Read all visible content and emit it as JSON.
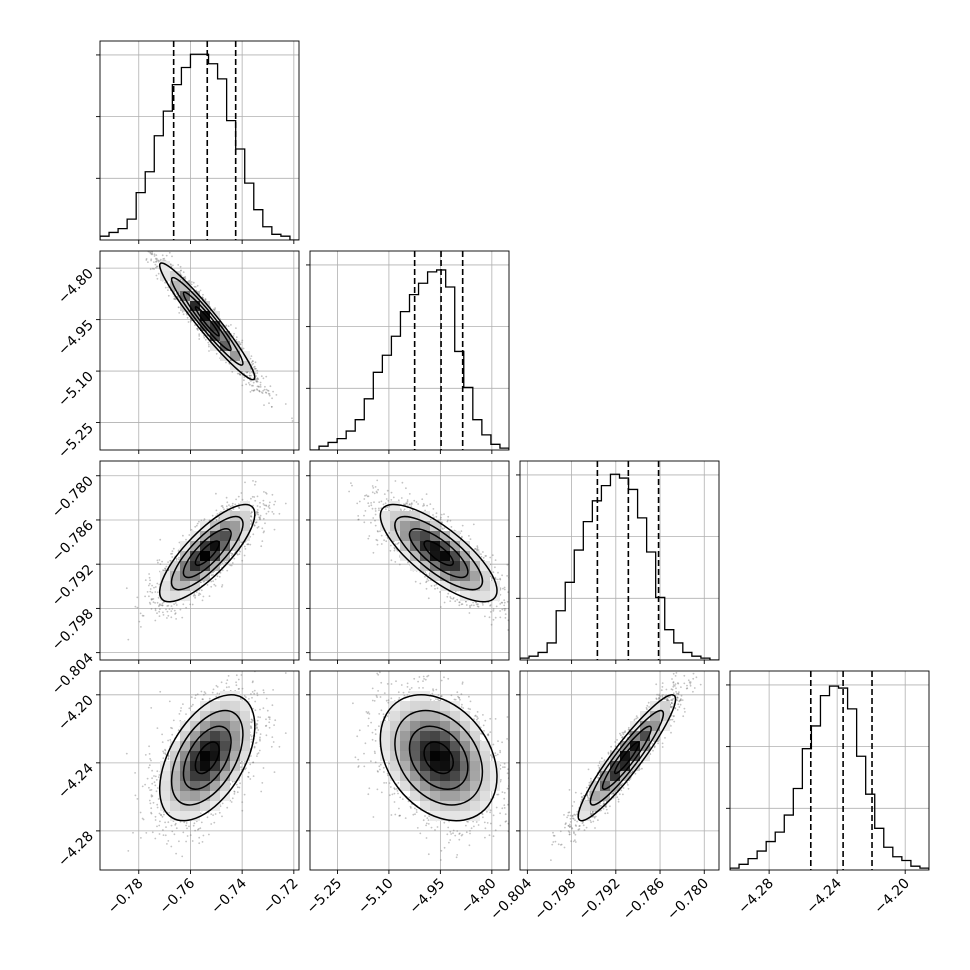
{
  "chart_data": {
    "type": "corner",
    "parameters": [
      {
        "range": [
          -0.795,
          -0.718
        ],
        "ticks": [
          -0.78,
          -0.76,
          -0.74,
          -0.72
        ],
        "tick_labels": [
          "−0.78",
          "−0.76",
          "−0.74",
          "−0.72"
        ],
        "quantiles": [
          -0.7665,
          -0.7535,
          -0.7425
        ],
        "hist": [
          0.02,
          0.04,
          0.06,
          0.11,
          0.25,
          0.36,
          0.55,
          0.68,
          0.82,
          0.91,
          0.98,
          0.98,
          0.93,
          0.85,
          0.63,
          0.48,
          0.3,
          0.16,
          0.07,
          0.03,
          0.02,
          0.0
        ],
        "hist_max": 1.05
      },
      {
        "range": [
          -5.33,
          -4.75
        ],
        "ticks": [
          -5.25,
          -5.1,
          -4.95,
          -4.8
        ],
        "tick_labels": [
          "−5.25",
          "−5.10",
          "−4.95",
          "−4.80"
        ],
        "quantiles": [
          -5.025,
          -4.948,
          -4.885
        ],
        "hist": [
          0.0,
          0.02,
          0.04,
          0.06,
          0.1,
          0.16,
          0.27,
          0.41,
          0.5,
          0.6,
          0.73,
          0.82,
          0.88,
          0.94,
          0.95,
          0.86,
          0.52,
          0.33,
          0.16,
          0.08,
          0.03,
          0.01
        ],
        "hist_max": 1.05
      },
      {
        "range": [
          -0.805,
          -0.778
        ],
        "ticks": [
          -0.804,
          -0.798,
          -0.792,
          -0.786,
          -0.78
        ],
        "tick_labels": [
          "−0.804",
          "−0.798",
          "−0.792",
          "−0.786",
          "−0.780"
        ],
        "quantiles": [
          -0.7945,
          -0.7903,
          -0.7862
        ],
        "hist": [
          0.01,
          0.02,
          0.04,
          0.09,
          0.26,
          0.41,
          0.58,
          0.73,
          0.84,
          0.92,
          0.98,
          0.96,
          0.9,
          0.75,
          0.57,
          0.33,
          0.16,
          0.09,
          0.04,
          0.02,
          0.01,
          0.0
        ],
        "hist_max": 1.05
      },
      {
        "range": [
          -4.303,
          -4.186
        ],
        "ticks": [
          -4.28,
          -4.24,
          -4.2
        ],
        "tick_labels": [
          "−4.28",
          "−4.24",
          "−4.20"
        ],
        "quantiles": [
          -4.2555,
          -4.2365,
          -4.2195
        ],
        "hist": [
          0.01,
          0.03,
          0.06,
          0.1,
          0.15,
          0.2,
          0.29,
          0.43,
          0.64,
          0.76,
          0.92,
          0.97,
          0.96,
          0.85,
          0.6,
          0.4,
          0.22,
          0.12,
          0.07,
          0.05,
          0.02,
          0.01
        ],
        "hist_max": 1.05
      }
    ],
    "pairs": [
      {
        "row": 1,
        "col": 0,
        "mean": [
          -0.7535,
          -4.955
        ],
        "sd": [
          0.0092,
          0.085
        ],
        "rho": -0.96
      },
      {
        "row": 2,
        "col": 0,
        "mean": [
          -0.7535,
          -0.7905
        ],
        "sd": [
          0.0092,
          0.0033
        ],
        "rho": 0.8
      },
      {
        "row": 2,
        "col": 1,
        "mean": [
          -4.955,
          -0.7905
        ],
        "sd": [
          0.085,
          0.0033
        ],
        "rho": -0.77
      },
      {
        "row": 3,
        "col": 0,
        "mean": [
          -0.7535,
          -4.237
        ],
        "sd": [
          0.0092,
          0.0185
        ],
        "rho": 0.5
      },
      {
        "row": 3,
        "col": 1,
        "mean": [
          -4.955,
          -4.237
        ],
        "sd": [
          0.085,
          0.0185
        ],
        "rho": -0.3
      },
      {
        "row": 3,
        "col": 2,
        "mean": [
          -0.7905,
          -4.237
        ],
        "sd": [
          0.0033,
          0.0185
        ],
        "rho": 0.93
      }
    ],
    "contour_levels_sigma": [
      0.5,
      1.0,
      1.5,
      2.0
    ],
    "grid": true,
    "colors": {
      "line": "#000000",
      "grid": "#b0b0b0",
      "scatter": "#7a7a7a"
    }
  }
}
